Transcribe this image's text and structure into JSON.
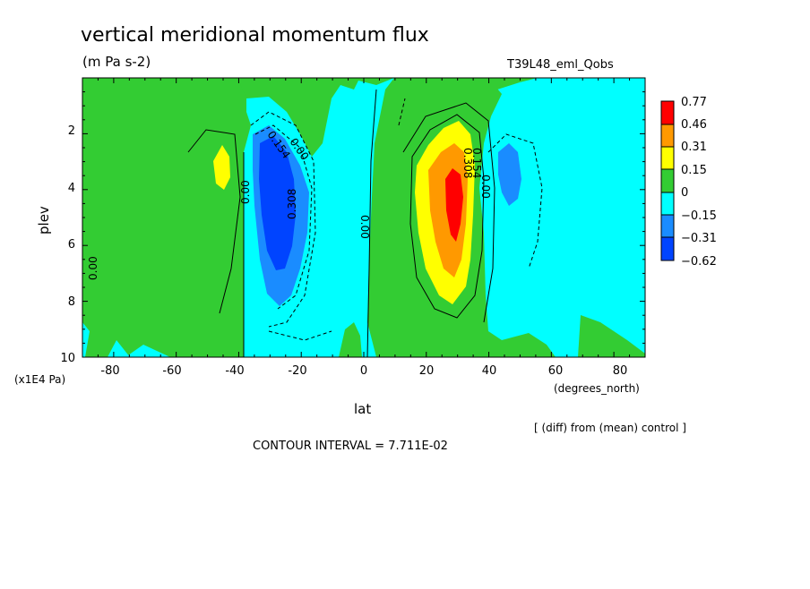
{
  "chart_data": {
    "type": "heatmap",
    "title": "vertical meridional momentum flux",
    "subtitle": "(m Pa s-2)",
    "run_label": "T39L48_eml_Qobs",
    "xlabel": "lat",
    "xunits": "(degrees_north)",
    "ylabel": "plev",
    "yunits": "(x1E4 Pa)",
    "xlim": [
      -90,
      90
    ],
    "ylim": [
      10,
      0
    ],
    "xticks": [
      -80,
      -60,
      -40,
      -20,
      0,
      20,
      40,
      60,
      80
    ],
    "yticks": [
      2,
      4,
      6,
      8,
      10
    ],
    "note": "[ (diff) from (mean) control ]",
    "contour_interval": "CONTOUR INTERVAL = 7.711E-02",
    "colorbar": {
      "labels": [
        "0.77",
        "0.46",
        "0.31",
        "0.15",
        "0",
        "−0.15",
        "−0.31",
        "−0.62"
      ],
      "colors": [
        "#ff0000",
        "#ff9900",
        "#ffff00",
        "#33cc33",
        "#00ffff",
        "#1a8cff",
        "#0044ff"
      ]
    },
    "contour_labels": [
      "0.00",
      "0.154",
      "0.00",
      "0.308",
      "0.00",
      "0.00",
      "0.308",
      "0.154",
      "0.00",
      "0.00"
    ],
    "features": [
      {
        "name": "negative-core",
        "lat": -28,
        "plev": 4.5,
        "value": -0.62
      },
      {
        "name": "positive-core",
        "lat": 28,
        "plev": 4.2,
        "value": 0.77
      },
      {
        "name": "negative-lobe",
        "lat": 45,
        "plev": 3.5,
        "value": -0.31
      },
      {
        "name": "positive-lobe",
        "lat": -45,
        "plev": 3.2,
        "value": 0.31
      }
    ]
  }
}
